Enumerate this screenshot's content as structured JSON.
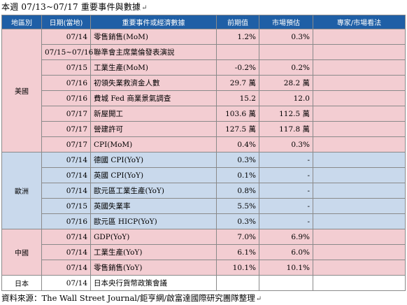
{
  "title": "本週 07/13~07/17 重要事件與數據",
  "headers": [
    "地區別",
    "日期(當地)",
    "重要事件或經濟數據",
    "前期值",
    "市場預估",
    "專家/市場看法"
  ],
  "regions": [
    {
      "name": "美國",
      "rows": [
        {
          "date": "07/14",
          "event": "零售銷售(MoM)",
          "prev": "1.2%",
          "forecast": "0.3%",
          "view": ""
        },
        {
          "date": "07/15~07/16",
          "event": "聯準會主席葉倫發表演說",
          "prev": "",
          "forecast": "",
          "view": ""
        },
        {
          "date": "07/15",
          "event": "工業生產(MoM)",
          "prev": "-0.2%",
          "forecast": "0.2%",
          "view": ""
        },
        {
          "date": "07/16",
          "event": "初領失業救濟金人數",
          "prev": "29.7 萬",
          "forecast": "28.2 萬",
          "view": ""
        },
        {
          "date": "07/16",
          "event": "費城 Fed 商業景氣調查",
          "prev": "15.2",
          "forecast": "12.0",
          "view": ""
        },
        {
          "date": "07/17",
          "event": "新屋開工",
          "prev": "103.6 萬",
          "forecast": "112.5 萬",
          "view": ""
        },
        {
          "date": "07/17",
          "event": "營建許可",
          "prev": "127.5 萬",
          "forecast": "117.8 萬",
          "view": ""
        },
        {
          "date": "07/17",
          "event": "CPI(MoM)",
          "prev": "0.4%",
          "forecast": "0.3%",
          "view": ""
        }
      ]
    },
    {
      "name": "歐洲",
      "rows": [
        {
          "date": "07/14",
          "event": "德國 CPI(YoY)",
          "prev": "0.3%",
          "forecast": "-",
          "view": ""
        },
        {
          "date": "07/14",
          "event": "英國 CPI(YoY)",
          "prev": "0.1%",
          "forecast": "-",
          "view": ""
        },
        {
          "date": "07/14",
          "event": "歐元區工業生產(YoY)",
          "prev": "0.8%",
          "forecast": "-",
          "view": ""
        },
        {
          "date": "07/15",
          "event": "英國失業率",
          "prev": "5.5%",
          "forecast": "-",
          "view": ""
        },
        {
          "date": "07/16",
          "event": "歐元區 HICP(YoY)",
          "prev": "0.3%",
          "forecast": "-",
          "view": ""
        }
      ]
    },
    {
      "name": "中國",
      "rows": [
        {
          "date": "07/14",
          "event": "GDP(YoY)",
          "prev": "7.0%",
          "forecast": "6.9%",
          "view": ""
        },
        {
          "date": "07/14",
          "event": "工業生產(YoY)",
          "prev": "6.1%",
          "forecast": "6.0%",
          "view": ""
        },
        {
          "date": "07/14",
          "event": "零售銷售(YoY)",
          "prev": "10.1%",
          "forecast": "10.1%",
          "view": ""
        }
      ]
    },
    {
      "name": "日本",
      "rows": [
        {
          "date": "07/14",
          "event": "日本央行貨幣政策會議",
          "prev": "",
          "forecast": "",
          "view": ""
        }
      ]
    }
  ],
  "source": "資料來源：The Wall Street Journal/鉅亨網/啟富達國際研究團隊整理",
  "colors": {
    "header": "#1f5fa6",
    "us": "#f3cdd2",
    "europe": "#c9d9ec",
    "china": "#f3cdd2",
    "japan": "#ffffff"
  }
}
